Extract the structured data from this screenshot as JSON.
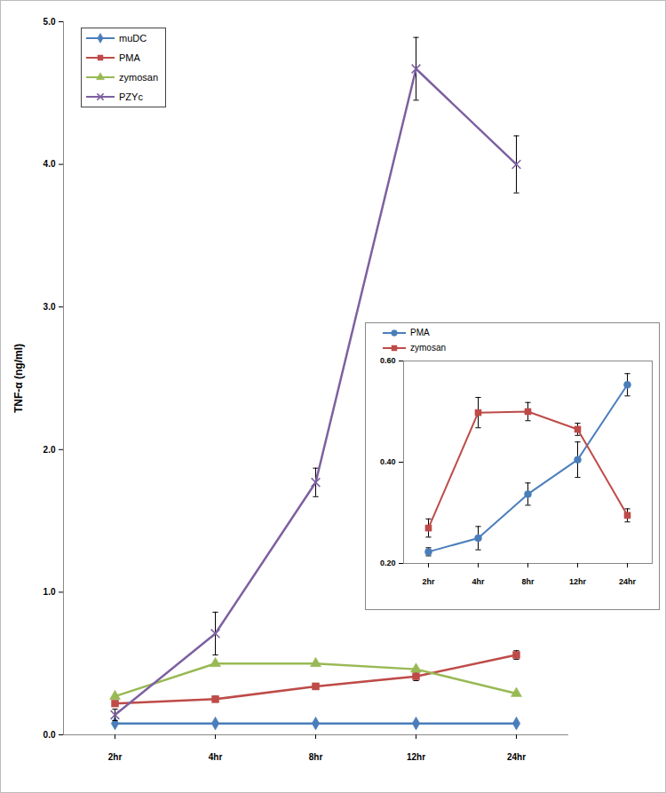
{
  "chart_data": [
    {
      "type": "line",
      "y_label": "TNF-α (ng/ml)",
      "categories": [
        "2hr",
        "4hr",
        "8hr",
        "12hr",
        "24hr"
      ],
      "ylim": [
        0,
        5
      ],
      "yticks": [
        0,
        1,
        2,
        3,
        4,
        5
      ],
      "grid": false,
      "legend": "top-left",
      "series": [
        {
          "name": "muDC",
          "color": "#4a7ebb",
          "marker": "diamond",
          "values": [
            0.08,
            0.08,
            0.08,
            0.08,
            0.08
          ]
        },
        {
          "name": "PMA",
          "color": "#be4b48",
          "marker": "square",
          "values": [
            0.22,
            0.25,
            0.34,
            0.41,
            0.56
          ],
          "errors": [
            0.01,
            0.02,
            0.02,
            0.03,
            0.03
          ]
        },
        {
          "name": "zymosan",
          "color": "#98b954",
          "marker": "triangle",
          "values": [
            0.27,
            0.5,
            0.5,
            0.46,
            0.29
          ]
        },
        {
          "name": "PZYc",
          "color": "#7d60a0",
          "marker": "x",
          "values": [
            0.14,
            0.71,
            1.77,
            4.67,
            4.0
          ],
          "errors": [
            0.04,
            0.15,
            0.1,
            0.22,
            0.2
          ]
        }
      ]
    },
    {
      "type": "line",
      "categories": [
        "2hr",
        "4hr",
        "8hr",
        "12hr",
        "24hr"
      ],
      "ylim": [
        0.2,
        0.6
      ],
      "yticks": [
        0.2,
        0.4,
        0.6
      ],
      "grid": false,
      "legend": "top-left",
      "series": [
        {
          "name": "PMA",
          "color": "#4a7ebb",
          "marker": "circle",
          "values": [
            0.223,
            0.25,
            0.337,
            0.405,
            0.553
          ],
          "errors": [
            0.008,
            0.023,
            0.022,
            0.035,
            0.022
          ]
        },
        {
          "name": "zymosan",
          "color": "#be4b48",
          "marker": "square",
          "values": [
            0.27,
            0.498,
            0.5,
            0.465,
            0.295
          ],
          "errors": [
            0.018,
            0.03,
            0.018,
            0.012,
            0.013
          ]
        }
      ]
    }
  ]
}
